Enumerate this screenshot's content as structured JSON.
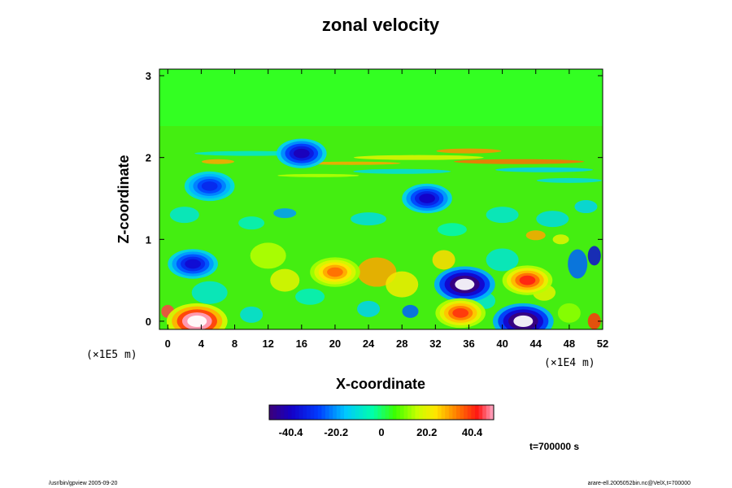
{
  "chart_data": {
    "type": "heatmap",
    "title": "zonal velocity",
    "xlabel": "X-coordinate",
    "ylabel": "Z-coordinate",
    "x_scale_label": "(×1E4 m)",
    "y_scale_label": "(×1E5 m)",
    "xlim": [
      -1,
      52
    ],
    "ylim": [
      -0.1,
      3.08
    ],
    "x_ticks": [
      "0",
      "4",
      "8",
      "12",
      "16",
      "20",
      "24",
      "28",
      "32",
      "36",
      "40",
      "44",
      "48",
      "52"
    ],
    "y_ticks": [
      "0",
      "1",
      "2",
      "3"
    ],
    "colorbar": {
      "range": [
        -50,
        50
      ],
      "ticks": [
        "-40.4",
        "-20.2",
        "0",
        "20.2",
        "40.4"
      ],
      "colormap": "rainbow (purple → blue → cyan → green → yellow → red → pink)"
    },
    "features": [
      {
        "x": 3.5,
        "z": 0.0,
        "value": 60
      },
      {
        "x": 3.0,
        "z": 0.7,
        "value": -38
      },
      {
        "x": 5.0,
        "z": 1.65,
        "value": -32
      },
      {
        "x": 16.0,
        "z": 2.05,
        "value": -42
      },
      {
        "x": 20.0,
        "z": 0.6,
        "value": 35
      },
      {
        "x": 31.0,
        "z": 1.5,
        "value": -40
      },
      {
        "x": 35.5,
        "z": 0.45,
        "value": -60
      },
      {
        "x": 35.0,
        "z": 0.1,
        "value": 40
      },
      {
        "x": 42.5,
        "z": 0.0,
        "value": -60
      },
      {
        "x": 43.0,
        "z": 0.5,
        "value": 42
      }
    ],
    "time_label": "t=700000 s"
  },
  "footer": {
    "left": "/usr/bin/gpview 2005-09-20",
    "right": "arare-ell.2005052bin.nc@VelX,t=700000"
  }
}
